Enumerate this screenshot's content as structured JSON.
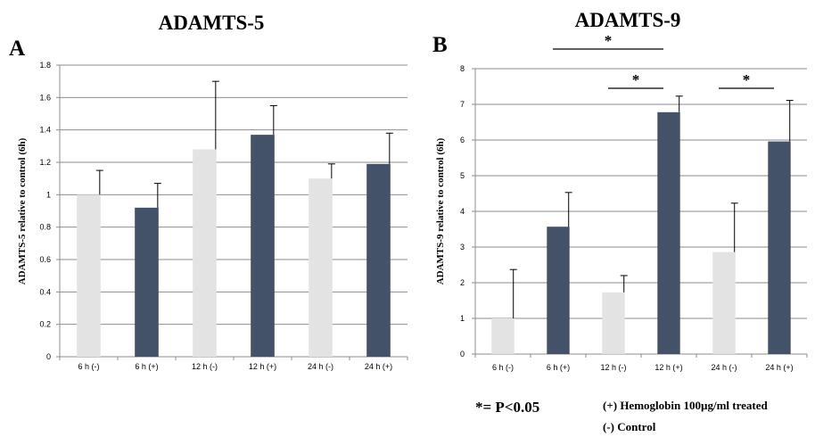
{
  "panels": [
    {
      "letter": "A",
      "title": "ADAMTS-5",
      "ylabel": "ADAMTS-5 relative to control (6h)",
      "ytick_labels": [
        "0",
        "0.2",
        "0.4",
        "0.6",
        "0.8",
        "1",
        "1.2",
        "1.4",
        "1.6",
        "1.8"
      ],
      "significance": []
    },
    {
      "letter": "B",
      "title": "ADAMTS-9",
      "ylabel": "ADAMTS-9 relative to control (6h)",
      "ytick_labels": [
        "0",
        "1",
        "2",
        "3",
        "4",
        "5",
        "6",
        "7",
        "8"
      ],
      "significance": [
        {
          "from": "6 h (+)",
          "to": "12 h (+)",
          "label": "*"
        },
        {
          "from": "12 h (-)",
          "to": "12 h (+)",
          "label": "*"
        },
        {
          "from": "24 h (-)",
          "to": "24 h (+)",
          "label": "*"
        }
      ]
    }
  ],
  "legend": {
    "significance_note": "*= P<0.05",
    "treated": "(+) Hemoglobin 100µg/ml treated",
    "control": "(-) Control"
  },
  "colors": {
    "control": "#e3e3e3",
    "treated": "#435269",
    "grid": "#8e8e8e",
    "axis": "#8e8e8e",
    "text": "#000000"
  },
  "chart_data": [
    {
      "type": "bar",
      "title": "ADAMTS-5",
      "xlabel": "",
      "ylabel": "ADAMTS-5 relative to control (6h)",
      "categories": [
        "6 h (-)",
        "6 h (+)",
        "12 h (-)",
        "12 h (+)",
        "24 h (-)",
        "24 h (+)"
      ],
      "values": [
        1.0,
        0.92,
        1.28,
        1.37,
        1.1,
        1.19
      ],
      "errors": [
        0.15,
        0.15,
        0.42,
        0.18,
        0.09,
        0.19
      ],
      "groups": [
        "control",
        "treated",
        "control",
        "treated",
        "control",
        "treated"
      ],
      "ylim": [
        0,
        1.8
      ],
      "yticks": [
        0,
        0.2,
        0.4,
        0.6,
        0.8,
        1.0,
        1.2,
        1.4,
        1.6,
        1.8
      ],
      "grid": true
    },
    {
      "type": "bar",
      "title": "ADAMTS-9",
      "xlabel": "",
      "ylabel": "ADAMTS-9 relative to control (6h)",
      "categories": [
        "6 h (-)",
        "6 h (+)",
        "12 h (-)",
        "12 h (+)",
        "24 h (-)",
        "24 h (+)"
      ],
      "values": [
        1.0,
        3.57,
        1.73,
        6.78,
        2.86,
        5.96
      ],
      "errors": [
        1.37,
        0.96,
        0.47,
        0.45,
        1.37,
        1.15
      ],
      "groups": [
        "control",
        "treated",
        "control",
        "treated",
        "control",
        "treated"
      ],
      "ylim": [
        0,
        8
      ],
      "yticks": [
        0,
        1,
        2,
        3,
        4,
        5,
        6,
        7,
        8
      ],
      "grid": true
    }
  ]
}
